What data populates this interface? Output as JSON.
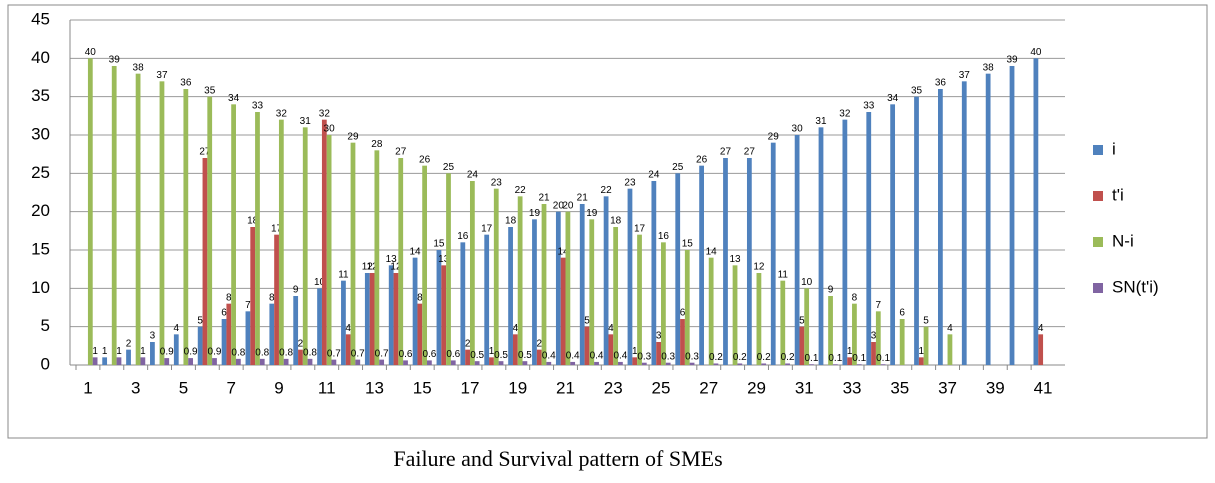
{
  "chart_data": {
    "type": "bar",
    "caption": "Failure and Survival pattern of SMEs",
    "categories": [
      1,
      null,
      3,
      null,
      5,
      null,
      7,
      null,
      9,
      null,
      11,
      null,
      13,
      null,
      15,
      null,
      17,
      null,
      19,
      null,
      21,
      null,
      23,
      null,
      25,
      null,
      27,
      null,
      29,
      null,
      31,
      null,
      33,
      null,
      35,
      null,
      37,
      null,
      39,
      null,
      41
    ],
    "series": [
      {
        "name": "i",
        "color": "#4f81bd",
        "values": [
          0,
          1,
          2,
          3,
          4,
          5,
          6,
          7,
          8,
          9,
          10,
          11,
          12,
          13,
          14,
          15,
          16,
          17,
          18,
          19,
          20,
          21,
          22,
          23,
          24,
          25,
          26,
          27,
          27,
          29,
          30,
          31,
          32,
          33,
          34,
          35,
          36,
          37,
          38,
          39,
          40
        ]
      },
      {
        "name": "t'i",
        "color": "#c0504d",
        "values": [
          0,
          0,
          0,
          0,
          0,
          27,
          8,
          18,
          17,
          2,
          32,
          4,
          12,
          12,
          8,
          13,
          2,
          1,
          4,
          2,
          14,
          5,
          4,
          1,
          3,
          6,
          0,
          0,
          0,
          0,
          5,
          0,
          1,
          3,
          0,
          1,
          0,
          0,
          0,
          0,
          4
        ]
      },
      {
        "name": "N-i",
        "color": "#9bbb59",
        "values": [
          40,
          39,
          38,
          37,
          36,
          35,
          34,
          33,
          32,
          31,
          30,
          29,
          28,
          27,
          26,
          25,
          24,
          23,
          22,
          21,
          20,
          19,
          18,
          17,
          16,
          15,
          14,
          13,
          12,
          11,
          10,
          9,
          8,
          7,
          6,
          5,
          4,
          0,
          0,
          0,
          0
        ]
      },
      {
        "name": "SN(t'i)",
        "color": "#8064a2",
        "values": [
          1,
          1,
          1,
          0.9,
          0.9,
          0.9,
          0.8,
          0.8,
          0.8,
          0.8,
          0.7,
          0.7,
          0.7,
          0.6,
          0.6,
          0.6,
          0.5,
          0.5,
          0.5,
          0.4,
          0.4,
          0.4,
          0.4,
          0.3,
          0.3,
          0.3,
          0.2,
          0.2,
          0.2,
          0.2,
          0.1,
          0.1,
          0.1,
          0.1,
          0,
          0,
          0,
          0,
          0,
          0,
          0
        ]
      }
    ],
    "ylim": [
      0,
      45
    ],
    "yticks": [
      0,
      5,
      10,
      15,
      20,
      25,
      30,
      35,
      40,
      45
    ],
    "grid": true,
    "legend": "right"
  }
}
